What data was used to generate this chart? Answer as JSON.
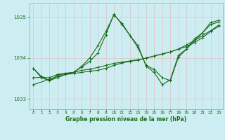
{
  "xlabel": "Graphe pression niveau de la mer (hPa)",
  "bg_color": "#cceef2",
  "grid_color": "#ddc8cc",
  "spine_color": "#aaaaaa",
  "line_color": "#1a6b1a",
  "ylim": [
    1032.75,
    1035.35
  ],
  "yticks": [
    1033,
    1034,
    1035
  ],
  "xlim": [
    -0.5,
    23.5
  ],
  "xticks": [
    0,
    1,
    2,
    3,
    4,
    5,
    6,
    7,
    8,
    9,
    10,
    11,
    12,
    13,
    14,
    15,
    16,
    17,
    18,
    19,
    20,
    21,
    22,
    23
  ],
  "s1_x": [
    0,
    1,
    2,
    3,
    4,
    5,
    6,
    7,
    8,
    9,
    10,
    11,
    12,
    13,
    14,
    15,
    16,
    17,
    18,
    19,
    20,
    21,
    22,
    23
  ],
  "s1_y": [
    1033.75,
    1033.55,
    1033.45,
    1033.58,
    1033.62,
    1033.65,
    1033.8,
    1034.0,
    1034.3,
    1034.65,
    1035.05,
    1034.85,
    1034.55,
    1034.25,
    1033.82,
    1033.72,
    1033.52,
    1033.45,
    1034.02,
    1034.22,
    1034.42,
    1034.62,
    1034.82,
    1034.88
  ],
  "s2_x": [
    0,
    2,
    3,
    4,
    5,
    6,
    7,
    8,
    9,
    10,
    11,
    12,
    13,
    14,
    15,
    16,
    17,
    18,
    19,
    20,
    21,
    22,
    23
  ],
  "s2_y": [
    1033.35,
    1033.48,
    1033.55,
    1033.6,
    1033.62,
    1033.65,
    1033.68,
    1033.7,
    1033.75,
    1033.82,
    1033.88,
    1033.92,
    1033.95,
    1034.0,
    1034.05,
    1034.1,
    1034.15,
    1034.22,
    1034.28,
    1034.38,
    1034.5,
    1034.65,
    1034.78
  ],
  "s3_x": [
    0,
    1,
    2,
    3,
    4,
    5,
    6,
    7,
    8,
    9,
    10,
    11,
    12,
    13,
    14,
    15,
    16,
    17,
    18,
    19,
    20,
    21,
    22,
    23
  ],
  "s3_y": [
    1033.52,
    1033.53,
    1033.52,
    1033.6,
    1033.63,
    1033.65,
    1033.7,
    1033.73,
    1033.77,
    1033.82,
    1033.87,
    1033.9,
    1033.93,
    1033.96,
    1034.0,
    1034.05,
    1034.1,
    1034.15,
    1034.22,
    1034.32,
    1034.43,
    1034.55,
    1034.67,
    1034.8
  ],
  "s4_x": [
    0,
    1,
    2,
    3,
    4,
    5,
    6,
    7,
    8,
    9,
    10,
    11,
    12,
    13,
    14,
    15,
    16,
    17,
    18,
    19,
    20,
    21,
    22,
    23
  ],
  "s4_y": [
    1033.75,
    1033.52,
    1033.45,
    1033.52,
    1033.6,
    1033.65,
    1033.78,
    1033.92,
    1034.12,
    1034.57,
    1035.07,
    1034.82,
    1034.55,
    1034.3,
    1033.8,
    1033.65,
    1033.35,
    1033.47,
    1034.07,
    1034.22,
    1034.47,
    1034.62,
    1034.87,
    1034.92
  ]
}
